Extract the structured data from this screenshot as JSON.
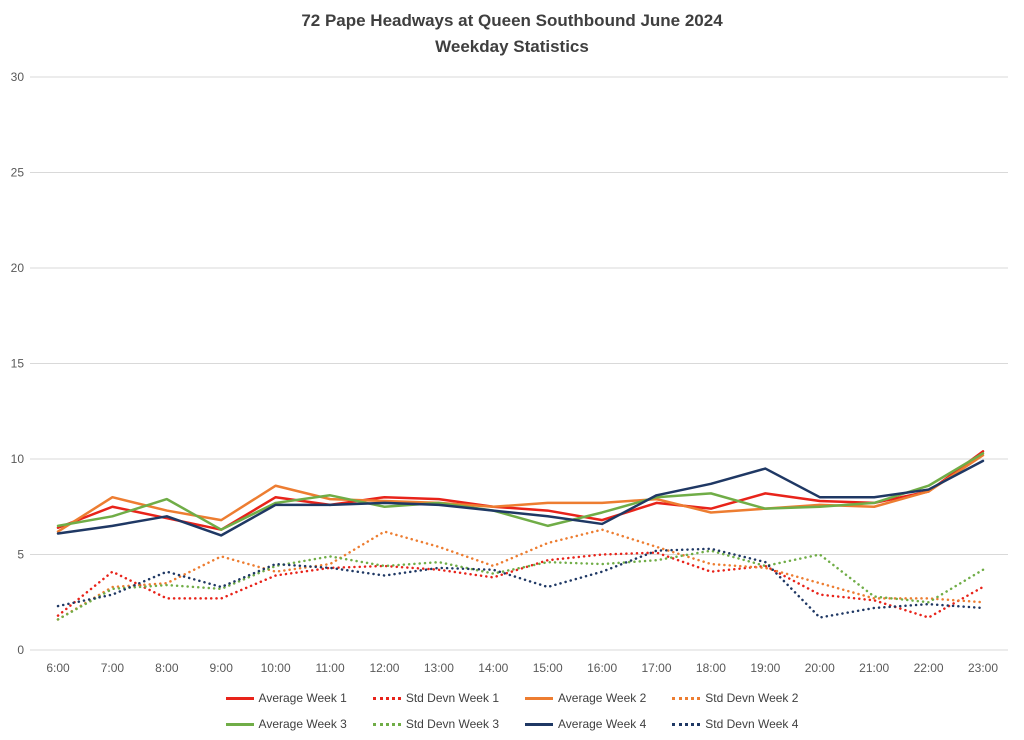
{
  "title": {
    "line1": "72 Pape Headways at Queen Southbound June 2024",
    "line2": "Weekday Statistics"
  },
  "axis": {
    "y_tick_labels": [
      "0",
      "5",
      "10",
      "15",
      "20",
      "25",
      "30"
    ],
    "x_tick_labels": [
      "6:00",
      "7:00",
      "8:00",
      "9:00",
      "10:00",
      "11:00",
      "12:00",
      "13:00",
      "14:00",
      "15:00",
      "16:00",
      "17:00",
      "18:00",
      "19:00",
      "20:00",
      "21:00",
      "22:00",
      "23:00"
    ]
  },
  "colors": {
    "week1": "#e8231a",
    "week2": "#ed7d31",
    "week3": "#70ad47",
    "week4": "#1f3864",
    "gridline": "#d9d9d9",
    "axis_text": "#595959",
    "title_text": "#3f3f3f"
  },
  "chart_data": {
    "type": "line",
    "title": "72 Pape Headways at Queen Southbound June 2024 — Weekday Statistics",
    "xlabel": "",
    "ylabel": "",
    "ylim": [
      0,
      30
    ],
    "yticks": [
      0,
      5,
      10,
      15,
      20,
      25,
      30
    ],
    "grid": true,
    "legend_position": "bottom",
    "x": [
      "6:00",
      "7:00",
      "8:00",
      "9:00",
      "10:00",
      "11:00",
      "12:00",
      "13:00",
      "14:00",
      "15:00",
      "16:00",
      "17:00",
      "18:00",
      "19:00",
      "20:00",
      "21:00",
      "22:00",
      "23:00"
    ],
    "series": [
      {
        "name": "Average Week 1",
        "color": "#e8231a",
        "style": "solid",
        "values": [
          6.4,
          7.5,
          6.9,
          6.3,
          8.0,
          7.6,
          8.0,
          7.9,
          7.5,
          7.3,
          6.8,
          7.7,
          7.4,
          8.2,
          7.8,
          7.7,
          8.3,
          10.4
        ]
      },
      {
        "name": "Std Devn Week 1",
        "color": "#e8231a",
        "style": "dotted",
        "values": [
          1.8,
          4.1,
          2.7,
          2.7,
          3.9,
          4.3,
          4.4,
          4.2,
          3.8,
          4.7,
          5.0,
          5.1,
          4.1,
          4.4,
          2.9,
          2.6,
          1.7,
          3.3
        ]
      },
      {
        "name": "Average Week 2",
        "color": "#ed7d31",
        "style": "solid",
        "values": [
          6.2,
          8.0,
          7.3,
          6.8,
          8.6,
          7.9,
          7.8,
          7.7,
          7.5,
          7.7,
          7.7,
          7.9,
          7.2,
          7.4,
          7.6,
          7.5,
          8.3,
          10.2
        ]
      },
      {
        "name": "Std Devn Week 2",
        "color": "#ed7d31",
        "style": "dotted",
        "values": [
          1.6,
          3.3,
          3.5,
          4.9,
          4.1,
          4.5,
          6.2,
          5.4,
          4.4,
          5.6,
          6.3,
          5.4,
          4.5,
          4.3,
          3.5,
          2.7,
          2.7,
          2.5
        ]
      },
      {
        "name": "Average Week 3",
        "color": "#70ad47",
        "style": "solid",
        "values": [
          6.5,
          7.0,
          7.9,
          6.3,
          7.7,
          8.1,
          7.5,
          7.7,
          7.3,
          6.5,
          7.2,
          8.0,
          8.2,
          7.4,
          7.5,
          7.7,
          8.6,
          10.3
        ]
      },
      {
        "name": "Std Devn Week 3",
        "color": "#70ad47",
        "style": "dotted",
        "values": [
          1.6,
          3.2,
          3.4,
          3.2,
          4.4,
          4.9,
          4.4,
          4.6,
          4.0,
          4.6,
          4.5,
          4.7,
          5.2,
          4.4,
          5.0,
          2.8,
          2.5,
          4.2
        ]
      },
      {
        "name": "Average Week 4",
        "color": "#1f3864",
        "style": "solid",
        "values": [
          6.1,
          6.5,
          7.0,
          6.0,
          7.6,
          7.6,
          7.7,
          7.6,
          7.3,
          7.0,
          6.6,
          8.1,
          8.7,
          9.5,
          8.0,
          8.0,
          8.4,
          9.9
        ]
      },
      {
        "name": "Std Devn Week 4",
        "color": "#1f3864",
        "style": "dotted",
        "values": [
          2.3,
          2.9,
          4.1,
          3.3,
          4.5,
          4.3,
          3.9,
          4.3,
          4.2,
          3.3,
          4.1,
          5.2,
          5.3,
          4.6,
          1.7,
          2.2,
          2.4,
          2.2
        ]
      }
    ]
  }
}
